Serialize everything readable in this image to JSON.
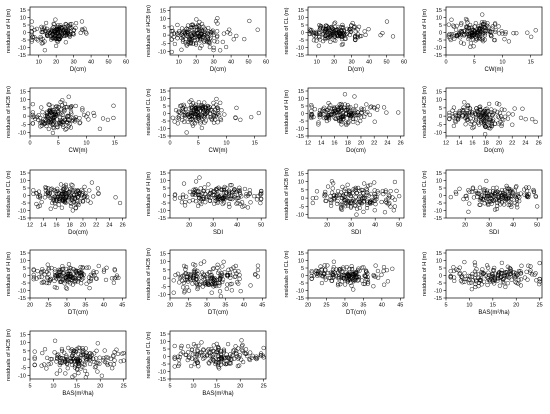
{
  "chart_data": [
    {
      "type": "scatter",
      "xlabel": "D(cm)",
      "ylabel": "residuals of H (m)",
      "xticks": [
        10,
        20,
        30,
        40,
        50,
        60
      ],
      "xlim": [
        5,
        60
      ],
      "yticks": [
        -15,
        -10,
        -5,
        0,
        5,
        10,
        15
      ],
      "ylim": [
        -15,
        17
      ],
      "x_center": 20,
      "x_spread": 7,
      "x_min": 6,
      "x_max": 58,
      "y_spread": 3.5,
      "points_approx": 170
    },
    {
      "type": "scatter",
      "xlabel": "D(cm)",
      "ylabel": "residuals of HCB (m)",
      "xticks": [
        10,
        20,
        30,
        40,
        50,
        60
      ],
      "xlim": [
        5,
        60
      ],
      "yticks": [
        -10,
        -5,
        0,
        5,
        10,
        15
      ],
      "ylim": [
        -12,
        17
      ],
      "x_center": 20,
      "x_spread": 7,
      "x_min": 6,
      "x_max": 58,
      "y_spread": 4,
      "points_approx": 170
    },
    {
      "type": "scatter",
      "xlabel": "D(cm)",
      "ylabel": "residuals of CL (m)",
      "xticks": [
        10,
        20,
        30,
        40,
        50,
        60
      ],
      "xlim": [
        5,
        60
      ],
      "yticks": [
        -15,
        -10,
        -5,
        0,
        5,
        10,
        15
      ],
      "ylim": [
        -15,
        17
      ],
      "x_center": 20,
      "x_spread": 7,
      "x_min": 6,
      "x_max": 58,
      "y_spread": 3.5,
      "points_approx": 170
    },
    {
      "type": "scatter",
      "xlabel": "CW(m)",
      "ylabel": "residuals of H (m)",
      "xticks": [
        0,
        5,
        10,
        15
      ],
      "xlim": [
        0,
        17
      ],
      "yticks": [
        -15,
        -10,
        -5,
        0,
        5,
        10,
        15
      ],
      "ylim": [
        -15,
        17
      ],
      "x_center": 5,
      "x_spread": 2.2,
      "x_min": 0.5,
      "x_max": 16,
      "y_spread": 3.5,
      "points_approx": 170
    },
    {
      "type": "scatter",
      "xlabel": "CW(m)",
      "ylabel": "residuals of HCB (m)",
      "xticks": [
        0,
        5,
        10,
        15
      ],
      "xlim": [
        0,
        17
      ],
      "yticks": [
        -10,
        -5,
        0,
        5,
        10,
        15
      ],
      "ylim": [
        -12,
        17
      ],
      "x_center": 5,
      "x_spread": 2.2,
      "x_min": 0.5,
      "x_max": 16,
      "y_spread": 4,
      "points_approx": 170
    },
    {
      "type": "scatter",
      "xlabel": "CW(m)",
      "ylabel": "residuals of CL (m)",
      "xticks": [
        0,
        5,
        10,
        15
      ],
      "xlim": [
        0,
        17
      ],
      "yticks": [
        -15,
        -10,
        -5,
        0,
        5,
        10,
        15
      ],
      "ylim": [
        -15,
        17
      ],
      "x_center": 5,
      "x_spread": 2.2,
      "x_min": 0.5,
      "x_max": 16,
      "y_spread": 3.5,
      "points_approx": 170
    },
    {
      "type": "scatter",
      "xlabel": "Do(cm)",
      "ylabel": "residuals of H (m)",
      "xticks": [
        12,
        14,
        16,
        18,
        20,
        22,
        24,
        26
      ],
      "xlim": [
        12,
        26.5
      ],
      "yticks": [
        -15,
        -10,
        -5,
        0,
        5,
        10,
        15
      ],
      "ylim": [
        -15,
        17
      ],
      "x_center": 17,
      "x_spread": 2.2,
      "x_min": 12.5,
      "x_max": 26,
      "y_spread": 3.5,
      "points_approx": 170
    },
    {
      "type": "scatter",
      "xlabel": "Do(cm)",
      "ylabel": "residuals of HCB (m)",
      "xticks": [
        12,
        14,
        16,
        18,
        20,
        22,
        24,
        26
      ],
      "xlim": [
        12,
        26.5
      ],
      "yticks": [
        -10,
        -5,
        0,
        5,
        10,
        15
      ],
      "ylim": [
        -12,
        17
      ],
      "x_center": 17,
      "x_spread": 2.2,
      "x_min": 12.5,
      "x_max": 26,
      "y_spread": 4,
      "points_approx": 170
    },
    {
      "type": "scatter",
      "xlabel": "Do(cm)",
      "ylabel": "residuals of CL (m)",
      "xticks": [
        12,
        14,
        16,
        18,
        20,
        22,
        24,
        26
      ],
      "xlim": [
        12,
        26.5
      ],
      "yticks": [
        -15,
        -10,
        -5,
        0,
        5,
        10,
        15
      ],
      "ylim": [
        -15,
        17
      ],
      "x_center": 17,
      "x_spread": 2.2,
      "x_min": 12.5,
      "x_max": 26,
      "y_spread": 3.5,
      "points_approx": 170
    },
    {
      "type": "scatter",
      "xlabel": "SDI",
      "ylabel": "residuals of H (m)",
      "xticks": [
        20,
        30,
        40,
        50
      ],
      "xlim": [
        12,
        52
      ],
      "yticks": [
        -15,
        -10,
        -5,
        0,
        5,
        10,
        15
      ],
      "ylim": [
        -15,
        17
      ],
      "x_center": 33,
      "x_spread": 8,
      "x_min": 14,
      "x_max": 50,
      "y_spread": 3.5,
      "points_approx": 170
    },
    {
      "type": "scatter",
      "xlabel": "SDI",
      "ylabel": "residuals of HCB (m)",
      "xticks": [
        20,
        30,
        40,
        50
      ],
      "xlim": [
        12,
        52
      ],
      "yticks": [
        -10,
        -5,
        0,
        5,
        10,
        15
      ],
      "ylim": [
        -12,
        17
      ],
      "x_center": 33,
      "x_spread": 8,
      "x_min": 14,
      "x_max": 50,
      "y_spread": 4,
      "points_approx": 170
    },
    {
      "type": "scatter",
      "xlabel": "SDI",
      "ylabel": "residuals of CL (m)",
      "xticks": [
        20,
        30,
        40,
        50
      ],
      "xlim": [
        12,
        52
      ],
      "yticks": [
        -15,
        -10,
        -5,
        0,
        5,
        10,
        15
      ],
      "ylim": [
        -15,
        17
      ],
      "x_center": 33,
      "x_spread": 8,
      "x_min": 14,
      "x_max": 50,
      "y_spread": 3.5,
      "points_approx": 170
    },
    {
      "type": "scatter",
      "xlabel": "DT(cm)",
      "ylabel": "residuals of H (m)",
      "xticks": [
        20,
        25,
        30,
        35,
        40,
        45
      ],
      "xlim": [
        20,
        46
      ],
      "yticks": [
        -15,
        -10,
        -5,
        0,
        5,
        10,
        15
      ],
      "ylim": [
        -15,
        17
      ],
      "x_center": 30,
      "x_spread": 4.5,
      "x_min": 21,
      "x_max": 45,
      "y_spread": 3.5,
      "points_approx": 170
    },
    {
      "type": "scatter",
      "xlabel": "DT(cm)",
      "ylabel": "residuals of HCB (m)",
      "xticks": [
        20,
        25,
        30,
        35,
        40,
        45
      ],
      "xlim": [
        20,
        46
      ],
      "yticks": [
        -10,
        -5,
        0,
        5,
        10,
        15
      ],
      "ylim": [
        -12,
        17
      ],
      "x_center": 30,
      "x_spread": 4.5,
      "x_min": 21,
      "x_max": 45,
      "y_spread": 4,
      "points_approx": 170
    },
    {
      "type": "scatter",
      "xlabel": "DT(cm)",
      "ylabel": "residuals of CL (m)",
      "xticks": [
        20,
        25,
        30,
        35,
        40,
        45
      ],
      "xlim": [
        20,
        46
      ],
      "yticks": [
        -15,
        -10,
        -5,
        0,
        5,
        10,
        15
      ],
      "ylim": [
        -15,
        17
      ],
      "x_center": 30,
      "x_spread": 4.5,
      "x_min": 21,
      "x_max": 45,
      "y_spread": 3.5,
      "points_approx": 170
    },
    {
      "type": "scatter",
      "xlabel": "BAS(m²/ha)",
      "ylabel": "residuals of H (m)",
      "xticks": [
        5,
        10,
        15,
        20,
        25
      ],
      "xlim": [
        5,
        25.5
      ],
      "yticks": [
        -15,
        -10,
        -5,
        0,
        5,
        10,
        15
      ],
      "ylim": [
        -15,
        17
      ],
      "x_center": 15,
      "x_spread": 4.5,
      "x_min": 6,
      "x_max": 25,
      "y_spread": 3.5,
      "points_approx": 170
    },
    {
      "type": "scatter",
      "xlabel": "BAS(m²/ha)",
      "ylabel": "residuals of HCB (m)",
      "xticks": [
        5,
        10,
        15,
        20,
        25
      ],
      "xlim": [
        5,
        25.5
      ],
      "yticks": [
        -10,
        -5,
        0,
        5,
        10,
        15
      ],
      "ylim": [
        -12,
        17
      ],
      "x_center": 15,
      "x_spread": 4.5,
      "x_min": 6,
      "x_max": 25,
      "y_spread": 4,
      "points_approx": 170
    },
    {
      "type": "scatter",
      "xlabel": "BAS(m²/ha)",
      "ylabel": "residuals of CL (m)",
      "xticks": [
        5,
        10,
        15,
        20,
        25
      ],
      "xlim": [
        5,
        25.5
      ],
      "yticks": [
        -15,
        -10,
        -5,
        0,
        5,
        10,
        15
      ],
      "ylim": [
        -15,
        17
      ],
      "x_center": 15,
      "x_spread": 4.5,
      "x_min": 6,
      "x_max": 25,
      "y_spread": 3.5,
      "points_approx": 170
    }
  ],
  "style": {
    "point_color": "#000000",
    "axis_color": "#000000",
    "background": "#ffffff"
  }
}
